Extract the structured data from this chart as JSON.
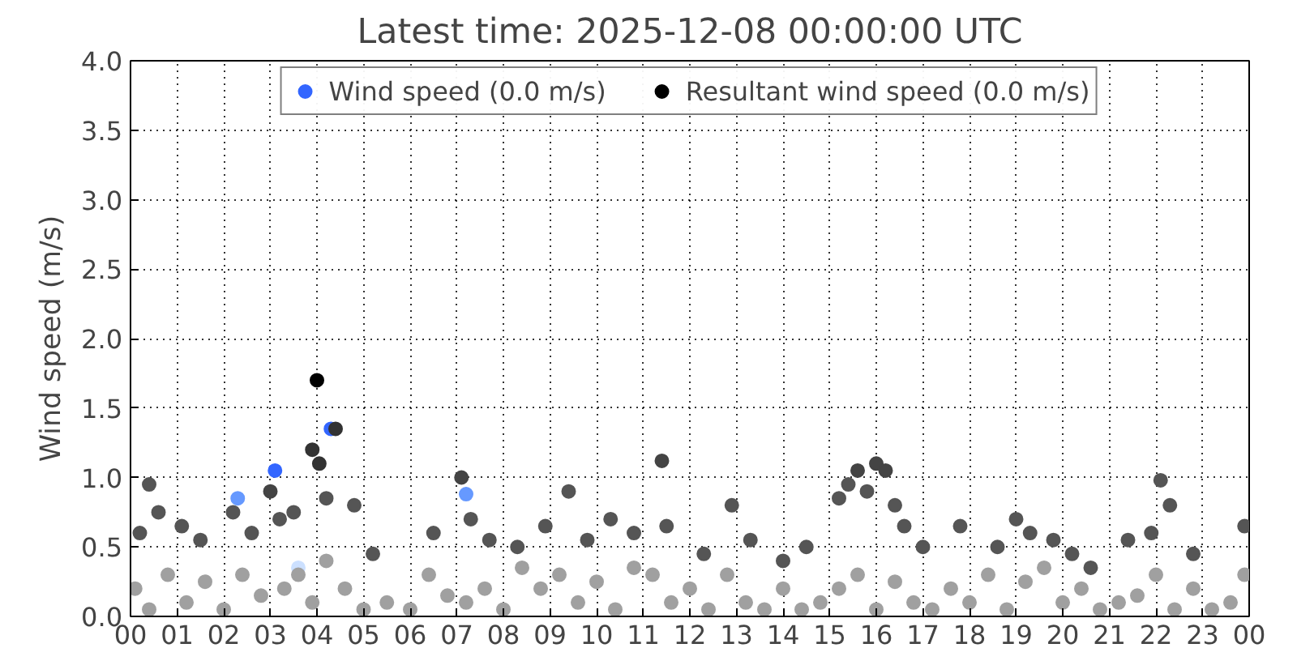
{
  "chart_data": {
    "type": "scatter",
    "title": "Latest time: 2025-12-08 00:00:00 UTC",
    "ylabel": "Wind speed (m/s)",
    "xlim": [
      0,
      24
    ],
    "ylim": [
      0,
      4
    ],
    "xticks": [
      {
        "value": 0,
        "label": "00"
      },
      {
        "value": 1,
        "label": "01"
      },
      {
        "value": 2,
        "label": "02"
      },
      {
        "value": 3,
        "label": "03"
      },
      {
        "value": 4,
        "label": "04"
      },
      {
        "value": 5,
        "label": "05"
      },
      {
        "value": 6,
        "label": "06"
      },
      {
        "value": 7,
        "label": "07"
      },
      {
        "value": 8,
        "label": "08"
      },
      {
        "value": 9,
        "label": "09"
      },
      {
        "value": 10,
        "label": "10"
      },
      {
        "value": 11,
        "label": "11"
      },
      {
        "value": 12,
        "label": "12"
      },
      {
        "value": 13,
        "label": "13"
      },
      {
        "value": 14,
        "label": "14"
      },
      {
        "value": 15,
        "label": "15"
      },
      {
        "value": 16,
        "label": "16"
      },
      {
        "value": 17,
        "label": "17"
      },
      {
        "value": 18,
        "label": "18"
      },
      {
        "value": 19,
        "label": "19"
      },
      {
        "value": 20,
        "label": "20"
      },
      {
        "value": 21,
        "label": "21"
      },
      {
        "value": 22,
        "label": "22"
      },
      {
        "value": 23,
        "label": "23"
      },
      {
        "value": 24,
        "label": "00"
      }
    ],
    "yticks": [
      {
        "value": 0,
        "label": "0.0"
      },
      {
        "value": 0.5,
        "label": "0.5"
      },
      {
        "value": 1,
        "label": "1.0"
      },
      {
        "value": 1.5,
        "label": "1.5"
      },
      {
        "value": 2,
        "label": "2.0"
      },
      {
        "value": 2.5,
        "label": "2.5"
      },
      {
        "value": 3,
        "label": "3.0"
      },
      {
        "value": 3.5,
        "label": "3.5"
      },
      {
        "value": 4,
        "label": "4.0"
      }
    ],
    "grid": true,
    "legend": "top",
    "marker": "circle",
    "series": [
      {
        "name": "Wind speed (0.0 m/s)",
        "color": "#3366ff",
        "x": [
          0.1,
          0.4,
          0.8,
          1.2,
          1.6,
          2.0,
          2.3,
          2.4,
          2.8,
          3.1,
          3.3,
          3.6,
          3.6,
          3.9,
          4.2,
          4.3,
          4.6,
          5.0,
          5.5,
          6.0,
          6.4,
          6.8,
          7.2,
          7.2,
          7.6,
          8.0,
          8.4,
          8.8,
          9.2,
          9.6,
          10.0,
          10.4,
          10.8,
          11.2,
          11.6,
          12.0,
          12.4,
          12.8,
          13.2,
          13.6,
          14.0,
          14.4,
          14.8,
          15.2,
          15.6,
          16.0,
          16.4,
          16.8,
          17.2,
          17.6,
          18.0,
          18.4,
          18.8,
          19.2,
          19.6,
          20.0,
          20.4,
          20.8,
          21.2,
          21.6,
          22.0,
          22.4,
          22.8,
          23.2,
          23.6,
          23.9
        ],
        "values": [
          0.2,
          0.05,
          0.3,
          0.1,
          0.25,
          0.05,
          0.85,
          0.3,
          0.15,
          1.05,
          0.2,
          0.35,
          0.3,
          0.1,
          0.4,
          1.35,
          0.2,
          0.05,
          0.1,
          0.05,
          0.3,
          0.15,
          0.88,
          0.1,
          0.2,
          0.05,
          0.35,
          0.2,
          0.3,
          0.1,
          0.25,
          0.05,
          0.35,
          0.3,
          0.1,
          0.2,
          0.05,
          0.3,
          0.1,
          0.05,
          0.2,
          0.05,
          0.1,
          0.2,
          0.3,
          0.05,
          0.25,
          0.1,
          0.05,
          0.2,
          0.1,
          0.3,
          0.05,
          0.25,
          0.35,
          0.1,
          0.2,
          0.05,
          0.1,
          0.15,
          0.3,
          0.05,
          0.2,
          0.05,
          0.1,
          0.3
        ],
        "colors": [
          "#a0a0a0",
          "#a0a0a0",
          "#a0a0a0",
          "#a0a0a0",
          "#a0a0a0",
          "#a0a0a0",
          "#6699ff",
          "#a0a0a0",
          "#a0a0a0",
          "#3366ff",
          "#a0a0a0",
          "#cce0ff",
          "#a0a0a0",
          "#a0a0a0",
          "#a0a0a0",
          "#3366ff",
          "#a0a0a0",
          "#a0a0a0",
          "#a0a0a0",
          "#a0a0a0",
          "#a0a0a0",
          "#a0a0a0",
          "#6699ff",
          "#a0a0a0",
          "#a0a0a0",
          "#a0a0a0",
          "#a0a0a0",
          "#a0a0a0",
          "#a0a0a0",
          "#a0a0a0",
          "#a0a0a0",
          "#a0a0a0",
          "#a0a0a0",
          "#a0a0a0",
          "#a0a0a0",
          "#a0a0a0",
          "#a0a0a0",
          "#a0a0a0",
          "#a0a0a0",
          "#a0a0a0",
          "#a0a0a0",
          "#a0a0a0",
          "#a0a0a0",
          "#a0a0a0",
          "#a0a0a0",
          "#a0a0a0",
          "#a0a0a0",
          "#a0a0a0",
          "#a0a0a0",
          "#a0a0a0",
          "#a0a0a0",
          "#a0a0a0",
          "#a0a0a0",
          "#a0a0a0",
          "#a0a0a0",
          "#a0a0a0",
          "#a0a0a0",
          "#a0a0a0",
          "#a0a0a0",
          "#a0a0a0",
          "#a0a0a0",
          "#a0a0a0",
          "#a0a0a0",
          "#a0a0a0",
          "#a0a0a0",
          "#a0a0a0"
        ]
      },
      {
        "name": "Resultant wind speed (0.0 m/s)",
        "color": "#000000",
        "x": [
          0.2,
          0.4,
          0.6,
          1.1,
          1.5,
          2.2,
          2.6,
          3.0,
          3.2,
          3.5,
          3.9,
          4.0,
          4.05,
          4.2,
          4.4,
          4.8,
          5.2,
          6.5,
          7.1,
          7.3,
          7.7,
          8.3,
          8.9,
          9.4,
          9.8,
          10.3,
          10.8,
          11.4,
          11.5,
          12.3,
          12.9,
          13.3,
          14.0,
          14.5,
          15.2,
          15.4,
          15.6,
          15.8,
          16.0,
          16.2,
          16.4,
          16.6,
          17.0,
          17.8,
          18.6,
          19.0,
          19.3,
          19.8,
          20.2,
          20.6,
          21.4,
          21.9,
          22.1,
          22.3,
          22.8,
          23.9
        ],
        "values": [
          0.6,
          0.95,
          0.75,
          0.65,
          0.55,
          0.75,
          0.6,
          0.9,
          0.7,
          0.75,
          1.2,
          1.7,
          1.1,
          0.85,
          1.35,
          0.8,
          0.45,
          0.6,
          1.0,
          0.7,
          0.55,
          0.5,
          0.65,
          0.9,
          0.55,
          0.7,
          0.6,
          1.12,
          0.65,
          0.45,
          0.8,
          0.55,
          0.4,
          0.5,
          0.85,
          0.95,
          1.05,
          0.9,
          1.1,
          1.05,
          0.8,
          0.65,
          0.5,
          0.65,
          0.5,
          0.7,
          0.6,
          0.55,
          0.45,
          0.35,
          0.55,
          0.6,
          0.98,
          0.8,
          0.45,
          0.65
        ],
        "colors": [
          "#555555",
          "#555555",
          "#555555",
          "#555555",
          "#555555",
          "#555555",
          "#555555",
          "#444444",
          "#555555",
          "#555555",
          "#333333",
          "#000000",
          "#333333",
          "#555555",
          "#333333",
          "#555555",
          "#555555",
          "#555555",
          "#444444",
          "#555555",
          "#555555",
          "#555555",
          "#555555",
          "#555555",
          "#555555",
          "#555555",
          "#555555",
          "#444444",
          "#555555",
          "#555555",
          "#555555",
          "#555555",
          "#555555",
          "#555555",
          "#555555",
          "#555555",
          "#444444",
          "#555555",
          "#444444",
          "#444444",
          "#555555",
          "#555555",
          "#555555",
          "#555555",
          "#555555",
          "#555555",
          "#555555",
          "#555555",
          "#555555",
          "#555555",
          "#555555",
          "#555555",
          "#555555",
          "#555555",
          "#555555",
          "#555555"
        ]
      }
    ]
  }
}
